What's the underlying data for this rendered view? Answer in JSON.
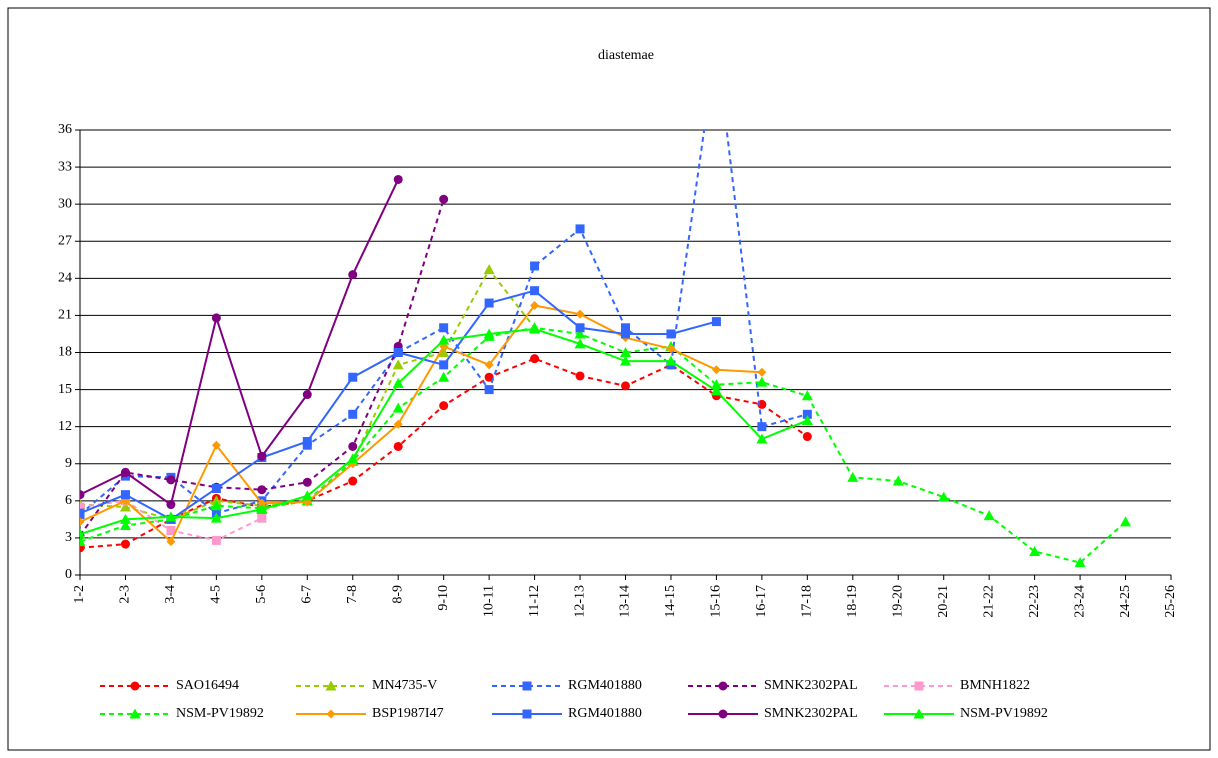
{
  "chart_data": {
    "type": "line",
    "title": "diastemae",
    "categories": [
      "1-2",
      "2-3",
      "3-4",
      "4-5",
      "5-6",
      "6-7",
      "7-8",
      "8-9",
      "9-10",
      "10-11",
      "11-12",
      "12-13",
      "13-14",
      "14-15",
      "15-16",
      "16-17",
      "17-18",
      "18-19",
      "19-20",
      "20-21",
      "21-22",
      "22-23",
      "23-24",
      "24-25",
      "25-26"
    ],
    "ylim": [
      0,
      36
    ],
    "yticks": [
      0,
      3,
      6,
      9,
      12,
      15,
      18,
      21,
      24,
      27,
      30,
      33,
      36
    ],
    "grid": true,
    "legend": "bottom",
    "series": [
      {
        "name": "SAO16494",
        "color": "#ff0000",
        "style": "dashed",
        "marker": "circle",
        "values": [
          2.2,
          2.5,
          4.5,
          6.2,
          5.5,
          6,
          7.6,
          10.4,
          13.7,
          16,
          17.5,
          16.1,
          15.3,
          17,
          14.5,
          13.8,
          11.2,
          null,
          null,
          null,
          null,
          null,
          null,
          null,
          null
        ]
      },
      {
        "name": "MN4735-V",
        "color": "#99cc00",
        "style": "dashed",
        "marker": "triangle",
        "values": [
          5.7,
          5.5,
          4.5,
          6,
          5.6,
          6,
          9.2,
          17,
          18,
          24.7,
          20,
          null,
          null,
          null,
          null,
          null,
          null,
          null,
          null,
          null,
          null,
          null,
          null,
          null,
          null
        ]
      },
      {
        "name": "RGM401880",
        "color": "#3366ff",
        "style": "dashed",
        "marker": "square",
        "values": [
          4.9,
          8,
          7.9,
          5,
          6,
          10.5,
          13,
          18,
          20,
          15,
          25,
          28,
          20,
          17,
          43,
          12,
          13,
          null,
          null,
          null,
          null,
          null,
          null,
          null,
          null
        ]
      },
      {
        "name": "SMNK2302PAL",
        "color": "#800080",
        "style": "dashed",
        "marker": "circle",
        "values": [
          3.2,
          8.3,
          7.7,
          7.1,
          6.9,
          7.5,
          10.4,
          18.5,
          30.4,
          null,
          null,
          null,
          null,
          null,
          null,
          null,
          null,
          null,
          null,
          null,
          null,
          null,
          null,
          null,
          null
        ]
      },
      {
        "name": "BMNH1822",
        "color": "#ff99cc",
        "style": "dashed",
        "marker": "square",
        "values": [
          5.5,
          6,
          3.6,
          2.8,
          4.6,
          null,
          null,
          null,
          null,
          null,
          null,
          null,
          null,
          null,
          null,
          null,
          null,
          null,
          null,
          null,
          null,
          null,
          null,
          null,
          null
        ]
      },
      {
        "name": "NSM-PV19892",
        "color": "#00ff00",
        "style": "dashed",
        "marker": "triangle",
        "values": [
          2.7,
          4,
          4.5,
          5.6,
          5.4,
          6,
          9.2,
          13.5,
          16,
          19.3,
          20,
          19.5,
          18,
          18.5,
          15.4,
          15.6,
          14.5,
          7.9,
          7.6,
          6.3,
          4.8,
          1.9,
          1,
          4.3,
          null
        ]
      },
      {
        "name": "BSP1987I47",
        "color": "#ff9900",
        "style": "solid",
        "marker": "diamond",
        "values": [
          4.3,
          6,
          2.7,
          10.5,
          5.8,
          5.9,
          9,
          12.2,
          18.5,
          17,
          21.8,
          21.1,
          19.2,
          18.3,
          16.6,
          16.4,
          null,
          null,
          null,
          null,
          null,
          null,
          null,
          null,
          null
        ]
      },
      {
        "name": "RGM401880",
        "color": "#3366ff",
        "style": "solid",
        "marker": "square",
        "values": [
          5,
          6.5,
          4.5,
          7,
          9.5,
          10.8,
          16,
          18,
          17,
          22,
          23,
          20,
          19.5,
          19.5,
          20.5,
          null,
          null,
          null,
          null,
          null,
          null,
          null,
          null,
          null,
          null
        ]
      },
      {
        "name": "SMNK2302PAL",
        "color": "#800080",
        "style": "solid",
        "marker": "circle",
        "values": [
          6.5,
          8.3,
          5.7,
          20.8,
          9.6,
          14.6,
          24.3,
          32,
          null,
          null,
          null,
          null,
          null,
          null,
          null,
          null,
          null,
          null,
          null,
          null,
          null,
          null,
          null,
          null,
          null
        ]
      },
      {
        "name": "NSM-PV19892",
        "color": "#00ff00",
        "style": "solid",
        "marker": "triangle",
        "values": [
          3.3,
          4.5,
          4.7,
          4.6,
          5.3,
          6.4,
          9.4,
          15.5,
          19,
          19.5,
          19.9,
          18.7,
          17.3,
          17.3,
          14.9,
          11,
          12.5,
          null,
          null,
          null,
          null,
          null,
          null,
          null,
          null
        ]
      }
    ]
  }
}
